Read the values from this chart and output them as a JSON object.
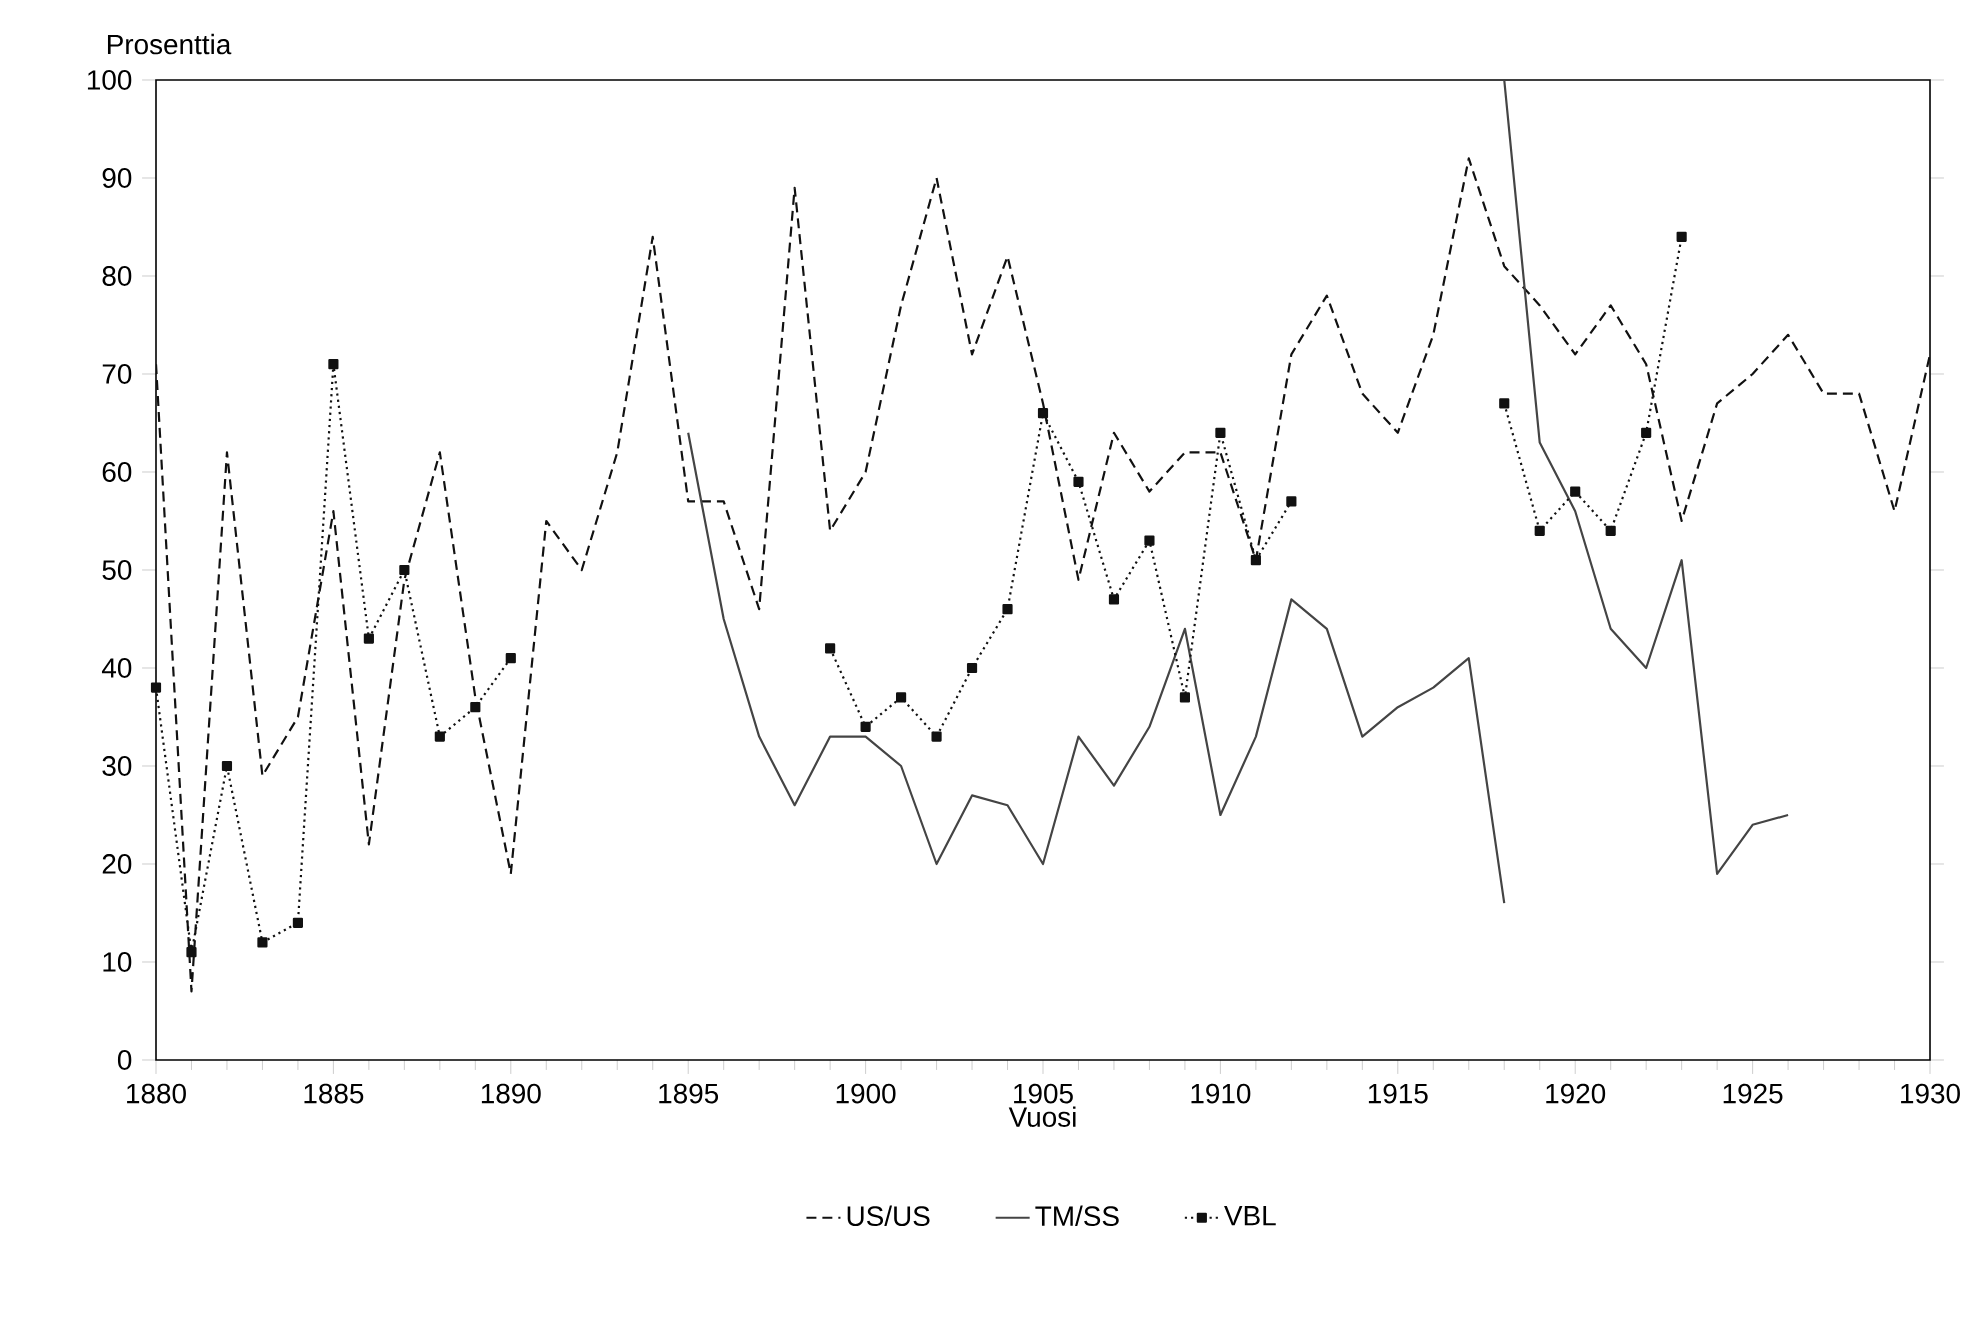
{
  "chart_data": {
    "type": "line",
    "xlabel": "Vuosi",
    "ylabel": "Prosenttia",
    "xlim": [
      1880,
      1930
    ],
    "xticks": [
      1880,
      1885,
      1890,
      1895,
      1900,
      1905,
      1910,
      1915,
      1920,
      1925,
      1930
    ],
    "ylim": [
      0,
      100
    ],
    "yticks": [
      0,
      10,
      20,
      30,
      40,
      50,
      60,
      70,
      80,
      90,
      100
    ],
    "legend": "bottom",
    "series": [
      {
        "name": "US/US",
        "color": "#111111",
        "line_style": "dashed",
        "marker": "none",
        "x": [
          1880,
          1881,
          1882,
          1883,
          1884,
          1885,
          1886,
          1887,
          1888,
          1889,
          1890,
          1891,
          1892,
          1893,
          1894,
          1895,
          1896,
          1897,
          1898,
          1899,
          1900,
          1901,
          1902,
          1903,
          1904,
          1905,
          1906,
          1907,
          1908,
          1909,
          1910,
          1911,
          1912,
          1913,
          1914,
          1915,
          1916,
          1917,
          1918,
          1919,
          1920,
          1921,
          1922,
          1923,
          1924,
          1925,
          1926,
          1927,
          1928,
          1929,
          1930
        ],
        "values": [
          71,
          7,
          62,
          29,
          35,
          56,
          22,
          49,
          62,
          37,
          19,
          55,
          50,
          62,
          84,
          57,
          57,
          46,
          89,
          54,
          60,
          77,
          90,
          72,
          82,
          67,
          49,
          64,
          58,
          62,
          62,
          51,
          72,
          78,
          68,
          64,
          74,
          92,
          81,
          77,
          72,
          77,
          71,
          55,
          67,
          70,
          74,
          68,
          68,
          56,
          72
        ]
      },
      {
        "name": "TM/SS",
        "color": "#444444",
        "line_style": "solid",
        "marker": "none",
        "x": [
          1895,
          1896,
          1897,
          1898,
          1899,
          1900,
          1901,
          1902,
          1903,
          1904,
          1905,
          1906,
          1907,
          1908,
          1909,
          1910,
          1911,
          1912,
          1913,
          1914,
          1915,
          1916,
          1917,
          1918
        ],
        "values": [
          64,
          45,
          33,
          26,
          33,
          33,
          30,
          20,
          27,
          26,
          20,
          33,
          28,
          34,
          44,
          25,
          33,
          47,
          44,
          33,
          36,
          38,
          41,
          16
        ]
      },
      {
        "color": "#444444",
        "line_style": "solid",
        "marker": "none",
        "x": [
          1918,
          1919,
          1920,
          1921,
          1922,
          1923,
          1924,
          1925,
          1926
        ],
        "values": [
          100,
          63,
          56,
          44,
          40,
          51,
          19,
          24,
          25
        ]
      },
      {
        "name": "VBL",
        "color": "#111111",
        "line_style": "dotted",
        "marker": "square",
        "x": [
          1880,
          1881,
          1882,
          1883,
          1884,
          1885,
          1886,
          1887,
          1888,
          1889,
          1890
        ],
        "values": [
          38,
          11,
          30,
          12,
          14,
          71,
          43,
          50,
          33,
          36,
          41
        ]
      },
      {
        "color": "#111111",
        "line_style": "dotted",
        "marker": "square",
        "x": [
          1899,
          1900,
          1901,
          1902,
          1903,
          1904,
          1905,
          1906,
          1907,
          1908,
          1909,
          1910,
          1911,
          1912
        ],
        "values": [
          42,
          34,
          37,
          33,
          40,
          46,
          66,
          59,
          47,
          53,
          37,
          64,
          51,
          57
        ]
      },
      {
        "color": "#111111",
        "line_style": "dotted",
        "marker": "square",
        "x": [
          1918,
          1919,
          1920,
          1921,
          1922,
          1923
        ],
        "values": [
          67,
          54,
          58,
          54,
          64,
          84
        ]
      }
    ]
  }
}
